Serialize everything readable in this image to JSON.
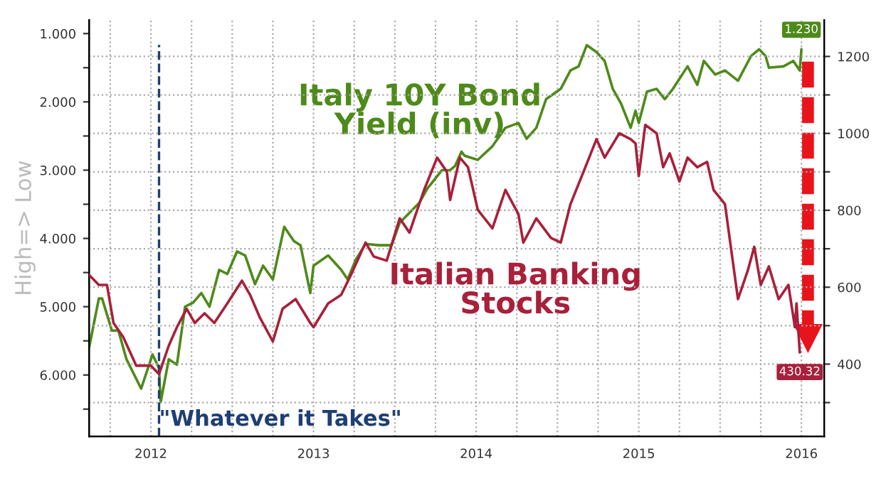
{
  "chart_data": {
    "type": "line",
    "ylabel": "High=> Low",
    "grid": true,
    "xlim": [
      2012.12,
      2016.64
    ],
    "xticks": [
      {
        "value": 2012.25,
        "label": null
      },
      {
        "value": 2012.5,
        "label": "2012"
      },
      {
        "value": 2012.75,
        "label": null
      },
      {
        "value": 2013,
        "label": null
      },
      {
        "value": 2013.25,
        "label": null
      },
      {
        "value": 2013.5,
        "label": "2013"
      },
      {
        "value": 2013.75,
        "label": null
      },
      {
        "value": 2014,
        "label": null
      },
      {
        "value": 2014.25,
        "label": null
      },
      {
        "value": 2014.5,
        "label": "2014"
      },
      {
        "value": 2014.75,
        "label": null
      },
      {
        "value": 2015,
        "label": null
      },
      {
        "value": 2015.25,
        "label": null
      },
      {
        "value": 2015.5,
        "label": "2015"
      },
      {
        "value": 2015.75,
        "label": null
      },
      {
        "value": 2016,
        "label": null
      },
      {
        "value": 2016.25,
        "label": null
      },
      {
        "value": 2016.5,
        "label": "2016"
      }
    ],
    "ylim": [
      6.9,
      0.8
    ],
    "yticks": [
      {
        "value": 1,
        "label": "1.000"
      },
      {
        "value": 1.5,
        "label": null
      },
      {
        "value": 2,
        "label": "2.000"
      },
      {
        "value": 2.5,
        "label": null
      },
      {
        "value": 3,
        "label": "3.000"
      },
      {
        "value": 3.5,
        "label": null
      },
      {
        "value": 4,
        "label": "4.000"
      },
      {
        "value": 4.5,
        "label": null
      },
      {
        "value": 5,
        "label": "5.000"
      },
      {
        "value": 5.5,
        "label": null
      },
      {
        "value": 6,
        "label": "6.000"
      },
      {
        "value": 6.5,
        "label": null
      }
    ],
    "y2lim": [
      212,
      1295
    ],
    "y2ticks": [
      {
        "value": 300,
        "label": null
      },
      {
        "value": 400,
        "label": "400"
      },
      {
        "value": 500,
        "label": null
      },
      {
        "value": 600,
        "label": "600"
      },
      {
        "value": 700,
        "label": null
      },
      {
        "value": 800,
        "label": "800"
      },
      {
        "value": 900,
        "label": null
      },
      {
        "value": 1000,
        "label": "1000"
      },
      {
        "value": 1100,
        "label": null
      },
      {
        "value": 1200,
        "label": "1200"
      }
    ],
    "ref_lines": [
      {
        "axis": "x",
        "value": 2012.55,
        "label": "\"Whatever it Takes\"",
        "color": "#1f3f73",
        "line_style": "dashed"
      }
    ],
    "series": [
      {
        "name": "Italy 10Y Bond\nYield (inv)",
        "color": "#4e8a1a",
        "axis": "y",
        "x": [
          2012.12,
          2012.18,
          2012.2,
          2012.26,
          2012.3,
          2012.35,
          2012.44,
          2012.51,
          2012.55,
          2012.56,
          2012.61,
          2012.66,
          2012.71,
          2012.76,
          2012.81,
          2012.86,
          2012.92,
          2012.97,
          2013.03,
          2013.08,
          2013.14,
          2013.19,
          2013.25,
          2013.32,
          2013.38,
          2013.42,
          2013.48,
          2013.5,
          2013.59,
          2013.67,
          2013.71,
          2013.76,
          2013.82,
          2013.9,
          2013.98,
          2014.03,
          2014.15,
          2014.2,
          2014.29,
          2014.34,
          2014.37,
          2014.41,
          2014.43,
          2014.51,
          2014.6,
          2014.68,
          2014.76,
          2014.81,
          2014.87,
          2014.93,
          2015.02,
          2015.08,
          2015.13,
          2015.18,
          2015.24,
          2015.29,
          2015.34,
          2015.39,
          2015.45,
          2015.48,
          2015.5,
          2015.55,
          2015.61,
          2015.66,
          2015.71,
          2015.8,
          2015.86,
          2015.9,
          2015.97,
          2016.03,
          2016.11,
          2016.19,
          2016.24,
          2016.28,
          2016.3,
          2016.39,
          2016.45,
          2016.49,
          2016.5
        ],
        "values": [
          5.6,
          4.88,
          4.88,
          5.35,
          5.35,
          5.77,
          6.2,
          5.7,
          5.9,
          6.4,
          5.77,
          5.85,
          5.0,
          4.94,
          4.8,
          5.0,
          4.46,
          4.52,
          4.19,
          4.25,
          4.67,
          4.4,
          4.6,
          3.83,
          4.04,
          4.1,
          4.8,
          4.4,
          4.25,
          4.46,
          4.6,
          4.31,
          4.08,
          4.1,
          4.1,
          3.77,
          3.48,
          3.27,
          3.0,
          3.0,
          2.94,
          2.73,
          2.79,
          2.85,
          2.65,
          2.38,
          2.31,
          2.54,
          2.38,
          1.96,
          1.81,
          1.54,
          1.48,
          1.17,
          1.27,
          1.4,
          1.81,
          2.02,
          2.38,
          2.13,
          2.31,
          1.85,
          1.81,
          1.96,
          1.81,
          1.48,
          1.75,
          1.4,
          1.6,
          1.54,
          1.69,
          1.33,
          1.23,
          1.33,
          1.5,
          1.48,
          1.4,
          1.54,
          1.23
        ],
        "value_labels": [
          null,
          null,
          null,
          null,
          null,
          null,
          null,
          null,
          null,
          null,
          null,
          null,
          null,
          null,
          null,
          null,
          null,
          null,
          null,
          null,
          null,
          null,
          null,
          null,
          null,
          null,
          null,
          null,
          null,
          null,
          null,
          null,
          null,
          null,
          null,
          null,
          null,
          null,
          null,
          null,
          null,
          null,
          null,
          null,
          null,
          null,
          null,
          null,
          null,
          null,
          null,
          null,
          null,
          null,
          null,
          null,
          null,
          null,
          null,
          null,
          null,
          null,
          null,
          null,
          null,
          null,
          null,
          null,
          null,
          null,
          null,
          null,
          null,
          null,
          null,
          null,
          null,
          null,
          "1.230"
        ]
      },
      {
        "name": "Italian Banking\nStocks",
        "color": "#a8203a",
        "axis": "y2",
        "x": [
          2012.12,
          2012.18,
          2012.23,
          2012.27,
          2012.33,
          2012.41,
          2012.5,
          2012.55,
          2012.61,
          2012.66,
          2012.72,
          2012.77,
          2012.83,
          2012.89,
          2012.97,
          2013.06,
          2013.11,
          2013.17,
          2013.25,
          2013.31,
          2013.39,
          2013.48,
          2013.5,
          2013.59,
          2013.67,
          2013.73,
          2013.82,
          2013.87,
          2013.95,
          2014.03,
          2014.09,
          2014.18,
          2014.26,
          2014.32,
          2014.34,
          2014.4,
          2014.45,
          2014.51,
          2014.6,
          2014.68,
          2014.76,
          2014.79,
          2014.87,
          2014.96,
          2015.02,
          2015.08,
          2015.16,
          2015.24,
          2015.29,
          2015.38,
          2015.45,
          2015.48,
          2015.5,
          2015.54,
          2015.61,
          2015.65,
          2015.69,
          2015.75,
          2015.8,
          2015.86,
          2015.92,
          2015.96,
          2016.03,
          2016.11,
          2016.17,
          2016.21,
          2016.25,
          2016.3,
          2016.36,
          2016.42,
          2016.46,
          2016.47,
          2016.49
        ],
        "values": [
          632,
          606,
          606,
          507,
          470,
          396,
          396,
          374,
          448,
          496,
          544,
          507,
          532,
          507,
          558,
          617,
          580,
          521,
          459,
          544,
          569,
          507,
          496,
          558,
          580,
          632,
          716,
          680,
          669,
          779,
          742,
          853,
          937,
          900,
          827,
          937,
          912,
          801,
          753,
          853,
          790,
          716,
          779,
          728,
          716,
          816,
          900,
          985,
          937,
          1000,
          985,
          974,
          889,
          1022,
          1000,
          912,
          948,
          875,
          937,
          912,
          926,
          853,
          816,
          569,
          643,
          705,
          606,
          654,
          569,
          606,
          496,
          558,
          430.32
        ],
        "value_labels": [
          null,
          null,
          null,
          null,
          null,
          null,
          null,
          null,
          null,
          null,
          null,
          null,
          null,
          null,
          null,
          null,
          null,
          null,
          null,
          null,
          null,
          null,
          null,
          null,
          null,
          null,
          null,
          null,
          null,
          null,
          null,
          null,
          null,
          null,
          null,
          null,
          null,
          null,
          null,
          null,
          null,
          null,
          null,
          null,
          null,
          null,
          null,
          null,
          null,
          null,
          null,
          null,
          null,
          null,
          null,
          null,
          null,
          null,
          null,
          null,
          null,
          null,
          null,
          null,
          null,
          null,
          null,
          null,
          null,
          null,
          null,
          null,
          "430.32"
        ]
      }
    ]
  }
}
